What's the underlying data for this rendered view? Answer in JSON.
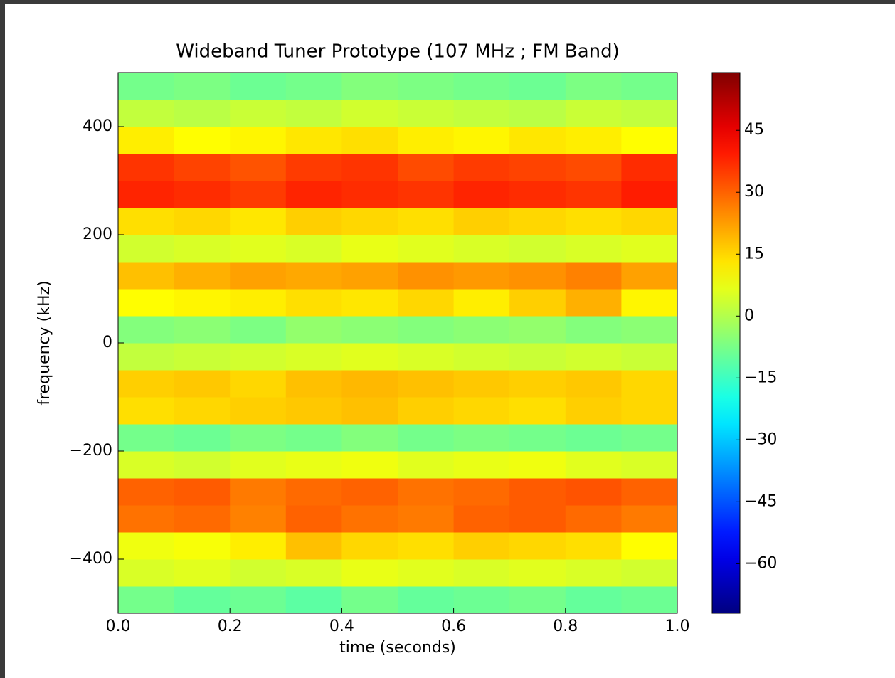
{
  "chart_data": {
    "type": "heatmap",
    "title": "Wideband Tuner Prototype (107 MHz ; FM Band)",
    "x_label": "time (seconds)",
    "y_label": "frequency (kHz)",
    "colormap": "jet",
    "x_bins": [
      0,
      0.1,
      0.2,
      0.3,
      0.4,
      0.5,
      0.6,
      0.7,
      0.8,
      0.9,
      1
    ],
    "y_bins": [
      -500,
      -450,
      -400,
      -350,
      -300,
      -250,
      -200,
      -150,
      -100,
      -50,
      0,
      50,
      100,
      150,
      200,
      250,
      300,
      350,
      400,
      450,
      500
    ],
    "z": [
      [
        -8,
        -10,
        -9,
        -11,
        -8,
        -10,
        -9,
        -8,
        -10,
        -9
      ],
      [
        5,
        6,
        4,
        5,
        7,
        6,
        5,
        6,
        5,
        4
      ],
      [
        8,
        9,
        12,
        18,
        15,
        14,
        16,
        15,
        14,
        10
      ],
      [
        28,
        29,
        26,
        30,
        28,
        27,
        30,
        31,
        29,
        27
      ],
      [
        30,
        31,
        27,
        29,
        30,
        28,
        29,
        31,
        32,
        30
      ],
      [
        5,
        4,
        6,
        7,
        8,
        6,
        7,
        8,
        6,
        5
      ],
      [
        -8,
        -9,
        -7,
        -8,
        -6,
        -8,
        -7,
        -8,
        -9,
        -8
      ],
      [
        14,
        15,
        16,
        17,
        18,
        16,
        15,
        14,
        16,
        15
      ],
      [
        16,
        17,
        15,
        18,
        19,
        18,
        17,
        16,
        17,
        15
      ],
      [
        2,
        3,
        4,
        5,
        6,
        5,
        4,
        3,
        4,
        3
      ],
      [
        -6,
        -5,
        -7,
        -4,
        -5,
        -6,
        -5,
        -4,
        -6,
        -5
      ],
      [
        10,
        11,
        12,
        14,
        13,
        15,
        12,
        16,
        20,
        11
      ],
      [
        18,
        20,
        22,
        21,
        22,
        24,
        23,
        24,
        26,
        22
      ],
      [
        4,
        5,
        6,
        5,
        7,
        6,
        5,
        4,
        5,
        6
      ],
      [
        14,
        15,
        13,
        16,
        15,
        14,
        16,
        15,
        14,
        15
      ],
      [
        38,
        37,
        35,
        38,
        37,
        36,
        38,
        37,
        36,
        39
      ],
      [
        36,
        34,
        32,
        35,
        36,
        33,
        35,
        34,
        33,
        37
      ],
      [
        12,
        10,
        11,
        13,
        14,
        12,
        11,
        13,
        12,
        10
      ],
      [
        2,
        1,
        3,
        2,
        4,
        3,
        2,
        1,
        3,
        2
      ],
      [
        -8,
        -7,
        -9,
        -8,
        -6,
        -7,
        -8,
        -9,
        -7,
        -8
      ]
    ],
    "xlim": [
      0,
      1
    ],
    "xticks": [
      {
        "value": 0,
        "label": "0.0"
      },
      0.2,
      0.4,
      0.6,
      0.8,
      {
        "value": 1,
        "label": "1.0"
      }
    ],
    "ylim": [
      -500,
      500
    ],
    "yticks": [
      {
        "value": -400,
        "label": "−400"
      },
      {
        "value": -200,
        "label": "−200"
      },
      0,
      200,
      400
    ],
    "clim": [
      -72,
      59
    ],
    "cticks": [
      {
        "value": -60,
        "label": "−60"
      },
      {
        "value": -45,
        "label": "−45"
      },
      {
        "value": -30,
        "label": "−30"
      },
      {
        "value": -15,
        "label": "−15"
      },
      0,
      15,
      30,
      45
    ]
  }
}
